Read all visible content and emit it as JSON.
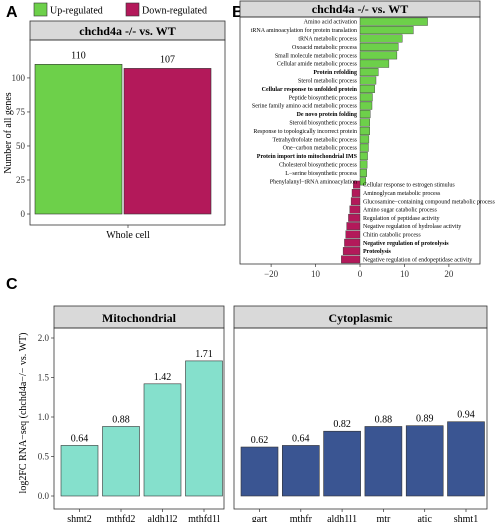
{
  "panel_labels": {
    "a": "A",
    "b": "B",
    "c": "C"
  },
  "colors": {
    "up": "#6dd04a",
    "down": "#b3195a",
    "mito": "#85e0cc",
    "cyto": "#3a5592",
    "strip": "#d9d9d9"
  },
  "chart_data": [
    {
      "id": "A",
      "type": "bar",
      "title": "chchd4a -/- vs. WT",
      "xlabel": "",
      "ylabel": "Number of all genes",
      "categories": [
        "Whole cell"
      ],
      "series": [
        {
          "name": "Up-regulated",
          "values": [
            110
          ]
        },
        {
          "name": "Down-regulated",
          "values": [
            107
          ]
        }
      ],
      "data_labels": [
        "110",
        "107"
      ],
      "yticks": [
        "0",
        "25",
        "50",
        "75",
        "100"
      ],
      "ylim": [
        0,
        122
      ],
      "legend": "top-left"
    },
    {
      "id": "B",
      "type": "bar",
      "orientation": "horizontal",
      "title": "chchd4a -/- vs. WT",
      "xticks": [
        "−20",
        "10",
        "0",
        "10",
        "20"
      ],
      "xlim": [
        -27,
        27
      ],
      "up_terms": [
        {
          "label": "Amino acid activation",
          "value": 15.2,
          "bold": false
        },
        {
          "label": "tRNA aminoacylation for protein translation",
          "value": 12.0,
          "bold": false
        },
        {
          "label": "tRNA metabolic process",
          "value": 9.5,
          "bold": false
        },
        {
          "label": "Oxoacid metabolic process",
          "value": 8.6,
          "bold": false
        },
        {
          "label": "Small molecule metabolic process",
          "value": 8.3,
          "bold": false
        },
        {
          "label": "Cellular amide metabolic process",
          "value": 6.5,
          "bold": false
        },
        {
          "label": "Protein refolding",
          "value": 4.1,
          "bold": true
        },
        {
          "label": "Sterol metabolic process",
          "value": 3.6,
          "bold": false
        },
        {
          "label": "Cellular response to unfolded protein",
          "value": 3.3,
          "bold": true
        },
        {
          "label": "Peptide biosynthetic process",
          "value": 2.8,
          "bold": false
        },
        {
          "label": "Serine family amino acid metabolic process",
          "value": 2.7,
          "bold": false
        },
        {
          "label": "De novo protein folding",
          "value": 2.3,
          "bold": true
        },
        {
          "label": "Steroid biosynthetic process",
          "value": 2.2,
          "bold": false
        },
        {
          "label": "Response to topologically incorrect protein",
          "value": 2.2,
          "bold": false
        },
        {
          "label": "Tetrahydrofolate metabolic process",
          "value": 2.0,
          "bold": false
        },
        {
          "label": "One−carbon metabolic process",
          "value": 1.9,
          "bold": false
        },
        {
          "label": "Protein import into mitochondrial IMS",
          "value": 1.7,
          "bold": true
        },
        {
          "label": "Cholesterol biosynthetic process",
          "value": 1.6,
          "bold": false
        },
        {
          "label": "L−serine biosynthetic process",
          "value": 1.5,
          "bold": false
        },
        {
          "label": "Phenylalanyl−tRNA aminoacylation",
          "value": 1.3,
          "bold": false
        }
      ],
      "down_terms": [
        {
          "label": "Cellular response to estrogen stimulus",
          "value": -1.5,
          "bold": false
        },
        {
          "label": "Aminoglycan metabolic process",
          "value": -1.8,
          "bold": false
        },
        {
          "label": "Glucosamine−containing compound metabolic process",
          "value": -2.0,
          "bold": false
        },
        {
          "label": "Amino sugar catabolic process",
          "value": -2.3,
          "bold": false
        },
        {
          "label": "Regulation of peptidase activity",
          "value": -2.6,
          "bold": false
        },
        {
          "label": "Negative regulation of hydrolase activity",
          "value": -3.0,
          "bold": false
        },
        {
          "label": "Chitin catabolic process",
          "value": -3.2,
          "bold": false
        },
        {
          "label": "Negative regulation of proteolysis",
          "value": -3.5,
          "bold": true
        },
        {
          "label": "Proteolysis",
          "value": -3.8,
          "bold": true
        },
        {
          "label": "Negative regulation of endopeptidase activity",
          "value": -4.2,
          "bold": false
        }
      ]
    },
    {
      "id": "C",
      "type": "bar",
      "ylabel": "log2FC RNA−seq (chchd4a−/− vs. WT)",
      "ylim": [
        0,
        2.05
      ],
      "yticks": [
        "0.0",
        "0.5",
        "1.0",
        "1.5",
        "2.0"
      ],
      "facets": [
        {
          "name": "Mitochondrial",
          "categories": [
            "shmt2",
            "mthfd2",
            "aldh1l2",
            "mthfd1l"
          ],
          "values": [
            0.64,
            0.88,
            1.42,
            1.71
          ],
          "labels": [
            "0.64",
            "0.88",
            "1.42",
            "1.71"
          ]
        },
        {
          "name": "Cytoplasmic",
          "categories": [
            "gart",
            "mthfr",
            "aldh1l1",
            "mtr",
            "atic",
            "shmt1"
          ],
          "values": [
            0.62,
            0.64,
            0.82,
            0.88,
            0.89,
            0.94
          ],
          "labels": [
            "0.62",
            "0.64",
            "0.82",
            "0.88",
            "0.89",
            "0.94"
          ]
        }
      ]
    }
  ]
}
